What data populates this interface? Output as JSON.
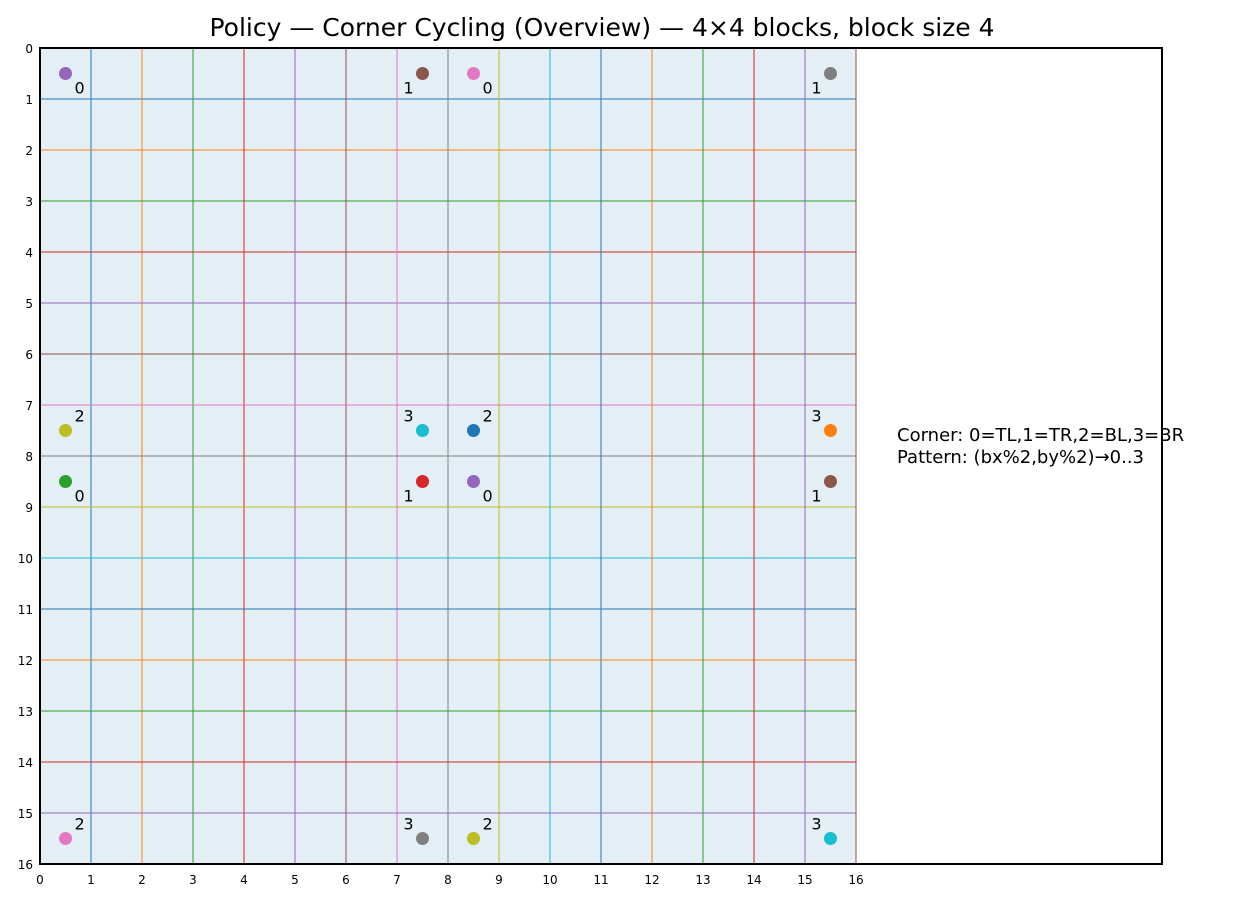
{
  "chart_data": {
    "type": "scatter",
    "title": "Policy — Corner Cycling (Overview) — 4×4 blocks, block size 4",
    "xlabel": "",
    "ylabel": "",
    "xlim": [
      0,
      16
    ],
    "ylim": [
      0,
      16
    ],
    "y_inverted": true,
    "grid": true,
    "x_ticks": [
      "0",
      "1",
      "2",
      "3",
      "4",
      "5",
      "6",
      "7",
      "8",
      "9",
      "10",
      "11",
      "12",
      "13",
      "14",
      "15",
      "16"
    ],
    "y_ticks": [
      "0",
      "1",
      "2",
      "3",
      "4",
      "5",
      "6",
      "7",
      "8",
      "9",
      "10",
      "11",
      "12",
      "13",
      "14",
      "15",
      "16"
    ],
    "region_color": "#e4eef5",
    "gridline_colors": [
      "#1f77b4",
      "#ff7f0e",
      "#2ca02c",
      "#d62728",
      "#9467bd",
      "#8c564b",
      "#e377c2",
      "#7f7f7f",
      "#bcbd22",
      "#17becf"
    ],
    "points": [
      {
        "x": 0.5,
        "y": 0.5,
        "label": "0",
        "color": "#9467bd",
        "label_pos": "br"
      },
      {
        "x": 7.5,
        "y": 0.5,
        "label": "1",
        "color": "#8c564b",
        "label_pos": "bl"
      },
      {
        "x": 8.5,
        "y": 0.5,
        "label": "0",
        "color": "#e377c2",
        "label_pos": "br"
      },
      {
        "x": 15.5,
        "y": 0.5,
        "label": "1",
        "color": "#7f7f7f",
        "label_pos": "bl"
      },
      {
        "x": 0.5,
        "y": 7.5,
        "label": "2",
        "color": "#bcbd22",
        "label_pos": "tr"
      },
      {
        "x": 7.5,
        "y": 7.5,
        "label": "3",
        "color": "#17becf",
        "label_pos": "tl"
      },
      {
        "x": 8.5,
        "y": 7.5,
        "label": "2",
        "color": "#1f77b4",
        "label_pos": "tr"
      },
      {
        "x": 15.5,
        "y": 7.5,
        "label": "3",
        "color": "#ff7f0e",
        "label_pos": "tl"
      },
      {
        "x": 0.5,
        "y": 8.5,
        "label": "0",
        "color": "#2ca02c",
        "label_pos": "br"
      },
      {
        "x": 7.5,
        "y": 8.5,
        "label": "1",
        "color": "#d62728",
        "label_pos": "bl"
      },
      {
        "x": 8.5,
        "y": 8.5,
        "label": "0",
        "color": "#9467bd",
        "label_pos": "br"
      },
      {
        "x": 15.5,
        "y": 8.5,
        "label": "1",
        "color": "#8c564b",
        "label_pos": "bl"
      },
      {
        "x": 0.5,
        "y": 15.5,
        "label": "2",
        "color": "#e377c2",
        "label_pos": "tr"
      },
      {
        "x": 7.5,
        "y": 15.5,
        "label": "3",
        "color": "#7f7f7f",
        "label_pos": "tl"
      },
      {
        "x": 8.5,
        "y": 15.5,
        "label": "2",
        "color": "#bcbd22",
        "label_pos": "tr"
      },
      {
        "x": 15.5,
        "y": 15.5,
        "label": "3",
        "color": "#17becf",
        "label_pos": "tl"
      }
    ],
    "annotations": [
      "Corner: 0=TL,1=TR,2=BL,3=BR",
      "Pattern: (bx%2,by%2)→0..3"
    ]
  }
}
